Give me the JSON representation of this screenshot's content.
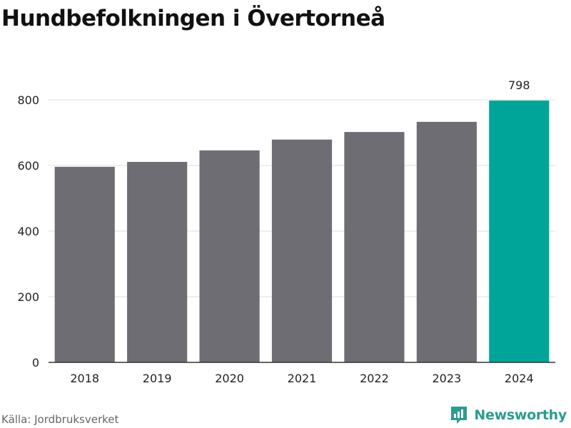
{
  "header": {
    "title": "Hundbefolkningen i Övertorneå"
  },
  "footer": {
    "source": "Källa: Jordbruksverket",
    "brand": "Newsworthy"
  },
  "colors": {
    "bar": "#6e6d73",
    "highlight": "#00a59a",
    "grid": "#dddddd",
    "axis": "#333333",
    "brand": "#2a9d8f"
  },
  "icons": {
    "brand_logo": "bar-chart-logo-icon"
  },
  "chart_data": {
    "type": "bar",
    "categories": [
      "2018",
      "2019",
      "2020",
      "2021",
      "2022",
      "2023",
      "2024"
    ],
    "values": [
      596,
      611,
      646,
      679,
      702,
      733,
      798
    ],
    "highlight_index": 6,
    "data_labels": [
      {
        "category": "2024",
        "value": "798"
      }
    ],
    "yticks": [
      0,
      200,
      400,
      600,
      800
    ],
    "ylim": [
      0,
      800
    ],
    "grid": true,
    "title": "Hundbefolkningen i Övertorneå",
    "xlabel": "",
    "ylabel": ""
  }
}
